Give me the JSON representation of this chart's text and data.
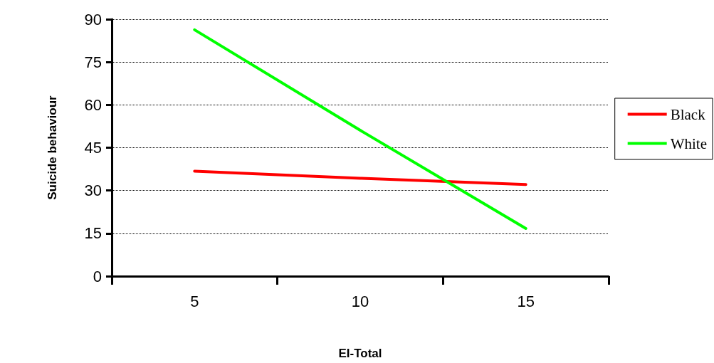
{
  "chart_data": {
    "type": "line",
    "xlabel": "EI-Total",
    "ylabel": "Suicide behaviour",
    "categories": [
      "5",
      "10",
      "15"
    ],
    "series": [
      {
        "name": "Black",
        "color": "#ff0000",
        "values": [
          36.8,
          34.3,
          32.1
        ]
      },
      {
        "name": "White",
        "color": "#00ff00",
        "values": [
          86.3,
          51.1,
          16.7
        ]
      }
    ],
    "ylim": [
      0,
      90
    ],
    "yticks": [
      0,
      15,
      30,
      45,
      60,
      75,
      90
    ],
    "grid": "y",
    "legend": "right",
    "marker": "none",
    "line_style": "solid"
  }
}
